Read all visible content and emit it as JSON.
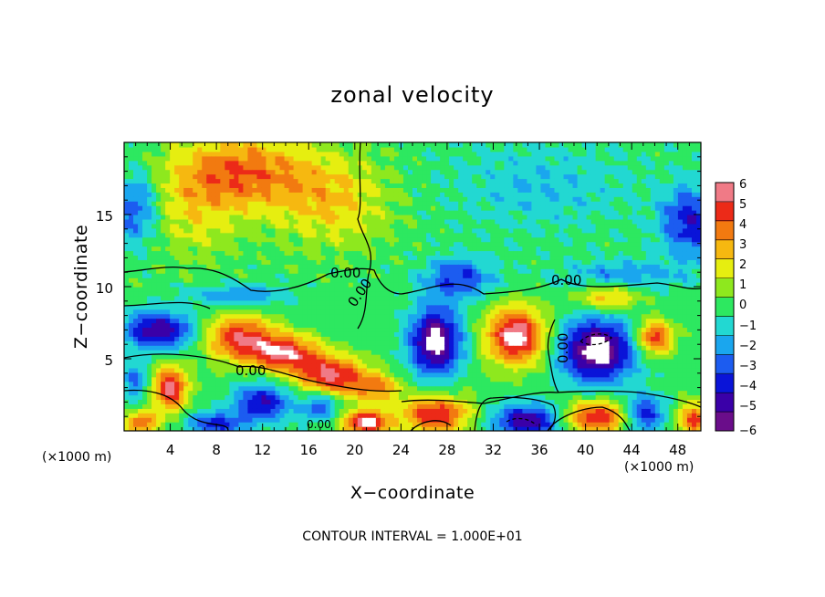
{
  "chart_data": {
    "type": "heatmap",
    "title": "zonal velocity",
    "xlabel": "X−coordinate",
    "ylabel": "Z−coordinate",
    "x_unit": "(×1000 m)",
    "z_unit": "(×1000 m)",
    "xlim": [
      0,
      50
    ],
    "ylim": [
      0,
      20
    ],
    "x_ticks": [
      4,
      8,
      12,
      16,
      20,
      24,
      28,
      32,
      36,
      40,
      44,
      48
    ],
    "y_ticks": [
      5,
      10,
      15
    ],
    "colorbar": {
      "range": [
        -6,
        6
      ],
      "ticks": [
        "6",
        "5",
        "4",
        "3",
        "2",
        "1",
        "0",
        "−1",
        "−2",
        "−3",
        "−4",
        "−5",
        "−6"
      ],
      "colors": [
        "#6a0d8a",
        "#3a00a8",
        "#0a14d8",
        "#1c5cf0",
        "#1aa6ee",
        "#22d8d2",
        "#2de860",
        "#8ee81e",
        "#e6ee10",
        "#f6b810",
        "#f27a10",
        "#ec2a18",
        "#f07a86"
      ],
      "saturated_low_color": "#ffffff",
      "saturated_high_color": "#ffffff"
    },
    "contour_label_texts": [
      "0.00",
      "0.00",
      "0.00",
      "0.00",
      "0.00",
      "0.00"
    ],
    "footer": "CONTOUR INTERVAL = 1.000E+01"
  }
}
